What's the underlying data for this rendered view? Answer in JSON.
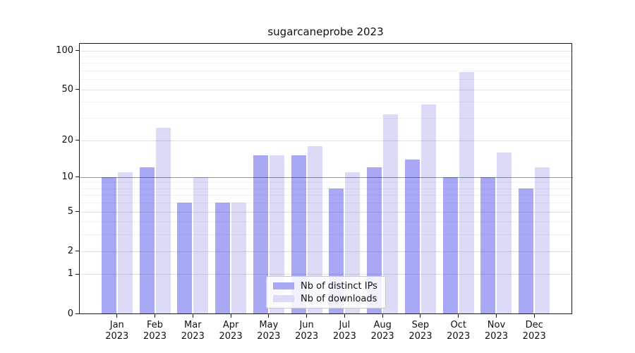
{
  "title": "sugarcaneprobe 2023",
  "legend": {
    "items": [
      {
        "label": "Nb of distinct IPs",
        "color": "#a8a8f5"
      },
      {
        "label": "Nb of downloads",
        "color": "#dbdbf8"
      }
    ]
  },
  "chart_data": {
    "type": "bar",
    "title": "sugarcaneprobe 2023",
    "categories": [
      "Jan 2023",
      "Feb 2023",
      "Mar 2023",
      "Apr 2023",
      "May 2023",
      "Jun 2023",
      "Jul 2023",
      "Aug 2023",
      "Sep 2023",
      "Oct 2023",
      "Nov 2023",
      "Dec 2023"
    ],
    "month_labels": [
      "Jan",
      "Feb",
      "Mar",
      "Apr",
      "May",
      "Jun",
      "Jul",
      "Aug",
      "Sep",
      "Oct",
      "Nov",
      "Dec"
    ],
    "year_label": "2023",
    "series": [
      {
        "name": "Nb of distinct IPs",
        "color": "#a8a8f5",
        "values": [
          10,
          12,
          6,
          6,
          15,
          15,
          8,
          12,
          14,
          10,
          10,
          8
        ]
      },
      {
        "name": "Nb of downloads",
        "color": "#dbdbf8",
        "values": [
          11,
          25,
          10,
          6,
          15,
          18,
          11,
          32,
          38,
          68,
          16,
          12
        ]
      }
    ],
    "y_scale": "log1p",
    "y_major_ticks": [
      0,
      1,
      2,
      5,
      10,
      20,
      50,
      100
    ],
    "y_minor_ticks": [
      3,
      4,
      6,
      7,
      8,
      9,
      30,
      40,
      60,
      70,
      80,
      90
    ],
    "ylim": [
      0,
      114
    ],
    "xlabel": "",
    "ylabel": "",
    "grid": "on",
    "reference_line_y": 10,
    "legend_position": "lower center"
  }
}
